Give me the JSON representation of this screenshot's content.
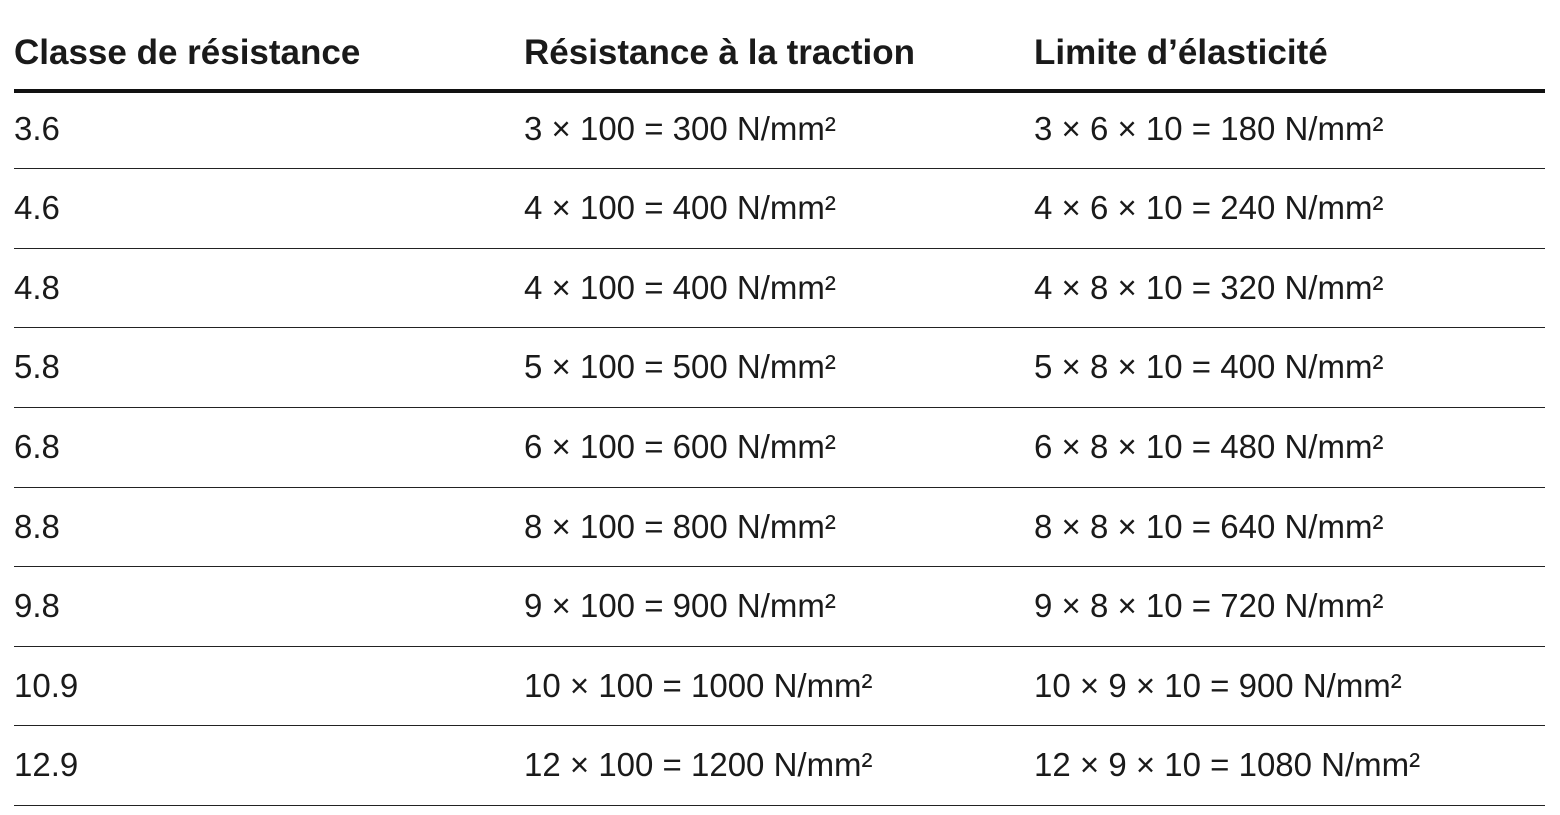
{
  "table": {
    "header": [
      "Classe de résistance",
      "Résistance à la traction",
      "Limite d’élasticité"
    ],
    "rows": [
      [
        "3.6",
        "3 × 100 = 300 N/mm²",
        "3 × 6 × 10 = 180 N/mm²"
      ],
      [
        "4.6",
        "4 × 100 = 400 N/mm²",
        "4 × 6 × 10 = 240 N/mm²"
      ],
      [
        "4.8",
        "4 × 100 = 400 N/mm²",
        "4 × 8 × 10 = 320 N/mm²"
      ],
      [
        "5.8",
        "5 × 100 = 500 N/mm²",
        "5 × 8 × 10 = 400 N/mm²"
      ],
      [
        "6.8",
        "6 × 100 = 600 N/mm²",
        "6 × 8 × 10 = 480 N/mm²"
      ],
      [
        "8.8",
        "8 × 100 = 800 N/mm²",
        "8 × 8 × 10 = 640 N/mm²"
      ],
      [
        "9.8",
        "9 × 100 = 900 N/mm²",
        "9 × 8 × 10 = 720 N/mm²"
      ],
      [
        "10.9",
        "10 × 100 = 1000 N/mm²",
        "10 × 9 × 10 = 900 N/mm²"
      ],
      [
        "12.9",
        "12 × 100 = 1200 N/mm²",
        "12 × 9 × 10 = 1080 N/mm²"
      ]
    ]
  }
}
